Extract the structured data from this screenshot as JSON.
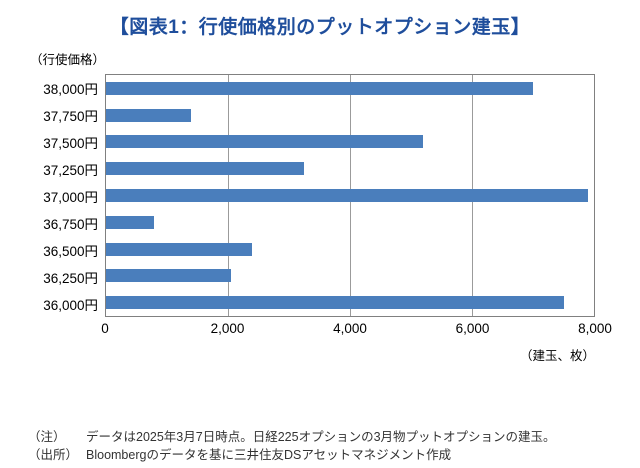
{
  "title": "【図表1：行使価格別のプットオプション建玉】",
  "chart_data": {
    "type": "bar",
    "orientation": "horizontal",
    "title": "図表1：行使価格別のプットオプション建玉",
    "categories": [
      "38,000円",
      "37,750円",
      "37,500円",
      "37,250円",
      "37,000円",
      "36,750円",
      "36,500円",
      "36,250円",
      "36,000円"
    ],
    "values": [
      7000,
      1400,
      5200,
      3250,
      7900,
      780,
      2400,
      2050,
      7500
    ],
    "y_axis_label": "（行使価格）",
    "x_axis_label": "（建玉、枚）",
    "x_ticks": [
      "0",
      "2,000",
      "4,000",
      "6,000",
      "8,000"
    ],
    "xlim": [
      0,
      8000
    ],
    "grid": true,
    "legend": "none",
    "bar_color": "#4a7ebc",
    "grid_color": "#9b9b9b",
    "title_color": "#1f4e9c"
  },
  "notes": [
    {
      "label": "（注）",
      "text": "データは2025年3月7日時点。日経225オプションの3月物プットオプションの建玉。"
    },
    {
      "label": "（出所）",
      "text": "Bloombergのデータを基に三井住友DSアセットマネジメント作成"
    }
  ]
}
